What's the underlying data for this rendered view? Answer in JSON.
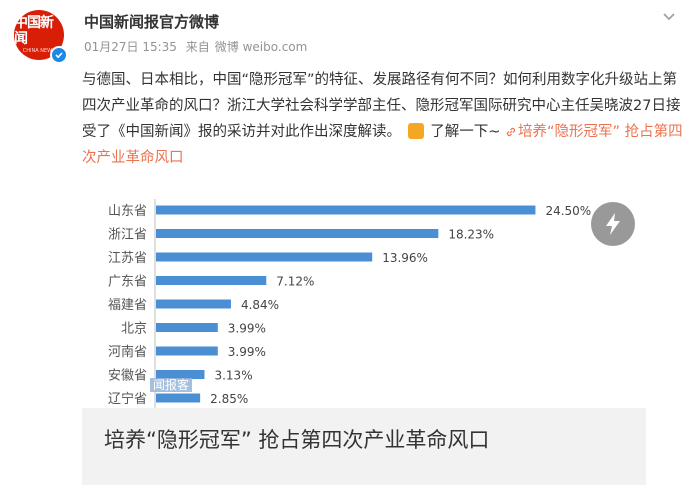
{
  "header": {
    "username": "中国新闻报官方微博",
    "timestamp": "01月27日 15:35",
    "source_prefix": "来自",
    "source": "微博 weibo.com",
    "avatar_text": "中国新闻",
    "avatar_sub": "CHINA NEWS"
  },
  "post": {
    "text": "与德国、日本相比，中国“隐形冠军”的特征、发展路径有何不同？如何利用数字化升级站上第四次产业革命的风口？浙江大学社会科学学部主任、隐形冠军国际研究中心主任吴晓波27日接受了《中国新闻》报的采访并对此作出深度解读。",
    "suffix": "了解一下~",
    "link_text": "培养“隐形冠军” 抢占第四次产业革命风口"
  },
  "card": {
    "caption": "培养“隐形冠军” 抢占第四次产业革命风口",
    "watermark": "闻报客"
  },
  "chart_data": {
    "type": "bar",
    "orientation": "horizontal",
    "categories": [
      "山东省",
      "浙江省",
      "江苏省",
      "广东省",
      "福建省",
      "北京",
      "河南省",
      "安徽省",
      "辽宁省"
    ],
    "values": [
      24.5,
      18.23,
      13.96,
      7.12,
      4.84,
      3.99,
      3.99,
      3.13,
      2.85
    ],
    "value_labels": [
      "24.50%",
      "18.23%",
      "13.96%",
      "7.12%",
      "4.84%",
      "3.99%",
      "3.99%",
      "3.13%",
      "2.85%"
    ],
    "xlim": [
      0,
      26
    ],
    "bar_color": "#4a8fd4",
    "grid": false
  },
  "colors": {
    "accent_link": "#eb7350",
    "avatar_red": "#d81e06",
    "verified_blue": "#1e88e5"
  },
  "icons": {
    "more": "chevron-down-icon",
    "play": "lightning-icon",
    "verified": "verified-icon",
    "link": "link-icon"
  }
}
